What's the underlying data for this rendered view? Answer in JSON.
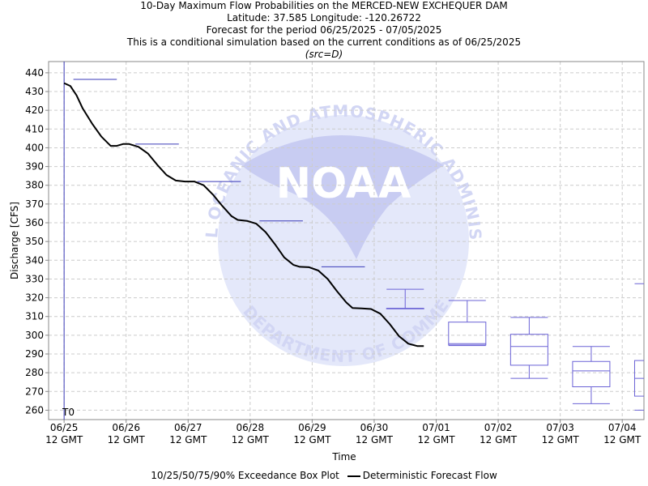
{
  "titles": {
    "line1": "10-Day Maximum Flow Probabilities on the MERCED-NEW EXCHEQUER DAM",
    "line2": "Latitude: 37.585 Longitude: -120.26722",
    "line3": "Forecast for the period 06/25/2025 - 07/05/2025",
    "line4": "This is a conditional simulation based on the current conditions as of 06/25/2025",
    "line5": "(src=D)"
  },
  "watermark": {
    "logo_text": "NOAA",
    "ring_top": "NATIONAL OCEANIC AND ATMOSPHERIC ADMINISTRATION",
    "ring_bottom": "U.S. DEPARTMENT OF COMMERCE"
  },
  "legend": {
    "box_label": "10/25/50/75/90% Exceedance Box Plot",
    "line_label": "Deterministic Forecast Flow"
  },
  "chart_data": {
    "type": "line",
    "xlabel": "Time",
    "ylabel": "Discharge [CFS]",
    "ylim": [
      255,
      446
    ],
    "xlim": [
      -0.25,
      9.35
    ],
    "grid": true,
    "t0_label": "T0",
    "y_ticks": [
      260,
      270,
      280,
      290,
      300,
      310,
      320,
      330,
      340,
      350,
      360,
      370,
      380,
      390,
      400,
      410,
      420,
      430,
      440
    ],
    "x_ticks": [
      {
        "x": 0,
        "date": "06/25",
        "time": "12 GMT"
      },
      {
        "x": 1,
        "date": "06/26",
        "time": "12 GMT"
      },
      {
        "x": 2,
        "date": "06/27",
        "time": "12 GMT"
      },
      {
        "x": 3,
        "date": "06/28",
        "time": "12 GMT"
      },
      {
        "x": 4,
        "date": "06/29",
        "time": "12 GMT"
      },
      {
        "x": 5,
        "date": "06/30",
        "time": "12 GMT"
      },
      {
        "x": 6,
        "date": "07/01",
        "time": "12 GMT"
      },
      {
        "x": 7,
        "date": "07/02",
        "time": "12 GMT"
      },
      {
        "x": 8,
        "date": "07/03",
        "time": "12 GMT"
      },
      {
        "x": 9,
        "date": "07/04",
        "time": "12 GMT"
      }
    ],
    "deterministic_series": {
      "name": "Deterministic Forecast Flow",
      "points": [
        [
          0.0,
          434.5
        ],
        [
          0.1,
          433.0
        ],
        [
          0.2,
          428.0
        ],
        [
          0.3,
          421.0
        ],
        [
          0.45,
          413.0
        ],
        [
          0.6,
          406.0
        ],
        [
          0.75,
          401.0
        ],
        [
          0.85,
          401.0
        ],
        [
          0.95,
          402.0
        ],
        [
          1.05,
          402.0
        ],
        [
          1.2,
          400.5
        ],
        [
          1.35,
          397.0
        ],
        [
          1.5,
          391.0
        ],
        [
          1.65,
          385.5
        ],
        [
          1.8,
          382.5
        ],
        [
          1.95,
          382.0
        ],
        [
          2.1,
          382.0
        ],
        [
          2.25,
          380.0
        ],
        [
          2.4,
          375.0
        ],
        [
          2.55,
          369.0
        ],
        [
          2.7,
          363.5
        ],
        [
          2.8,
          361.5
        ],
        [
          2.95,
          361.0
        ],
        [
          3.1,
          359.5
        ],
        [
          3.25,
          355.0
        ],
        [
          3.4,
          348.5
        ],
        [
          3.55,
          341.5
        ],
        [
          3.7,
          337.5
        ],
        [
          3.8,
          336.5
        ],
        [
          3.95,
          336.3
        ],
        [
          4.1,
          334.5
        ],
        [
          4.25,
          330.0
        ],
        [
          4.4,
          323.5
        ],
        [
          4.55,
          317.5
        ],
        [
          4.65,
          314.5
        ],
        [
          4.8,
          314.3
        ],
        [
          4.95,
          314.0
        ],
        [
          5.1,
          311.5
        ],
        [
          5.25,
          306.0
        ],
        [
          5.4,
          299.5
        ],
        [
          5.55,
          295.5
        ],
        [
          5.7,
          294.2
        ],
        [
          5.8,
          294.2
        ]
      ]
    },
    "max_flow_markers": [
      {
        "x0": 0.15,
        "x1": 0.85,
        "value": 436.5
      },
      {
        "x0": 1.15,
        "x1": 1.85,
        "value": 402.0
      },
      {
        "x0": 2.15,
        "x1": 2.85,
        "value": 382.0
      },
      {
        "x0": 3.15,
        "x1": 3.85,
        "value": 361.0
      },
      {
        "x0": 4.15,
        "x1": 4.85,
        "value": 336.5
      }
    ],
    "box_plots": [
      {
        "x": 5.5,
        "p10": 314.3,
        "p25": 314.3,
        "p50": 314.3,
        "p75": 314.3,
        "p90": 324.5
      },
      {
        "x": 6.5,
        "p10": 294.5,
        "p25": 294.8,
        "p50": 295.5,
        "p75": 307.0,
        "p90": 318.5
      },
      {
        "x": 7.5,
        "p10": 277.0,
        "p25": 284.0,
        "p50": 294.0,
        "p75": 300.5,
        "p90": 309.5
      },
      {
        "x": 8.5,
        "p10": 263.5,
        "p25": 272.5,
        "p50": 281.0,
        "p75": 286.0,
        "p90": 294.0
      },
      {
        "x": 9.5,
        "p10": 260.0,
        "p25": 267.5,
        "p50": 277.0,
        "p75": 286.5,
        "p90": 327.5
      }
    ],
    "colors": {
      "deterministic": "#000000",
      "box": "#6b63d6",
      "marker": "#3a3ab8",
      "t0_line": "#3a3ab8",
      "grid": "#cccccc",
      "watermark_light": "#e4e8fa",
      "watermark_mid": "#c8ccf2",
      "watermark_dark": "#ffffff"
    }
  }
}
